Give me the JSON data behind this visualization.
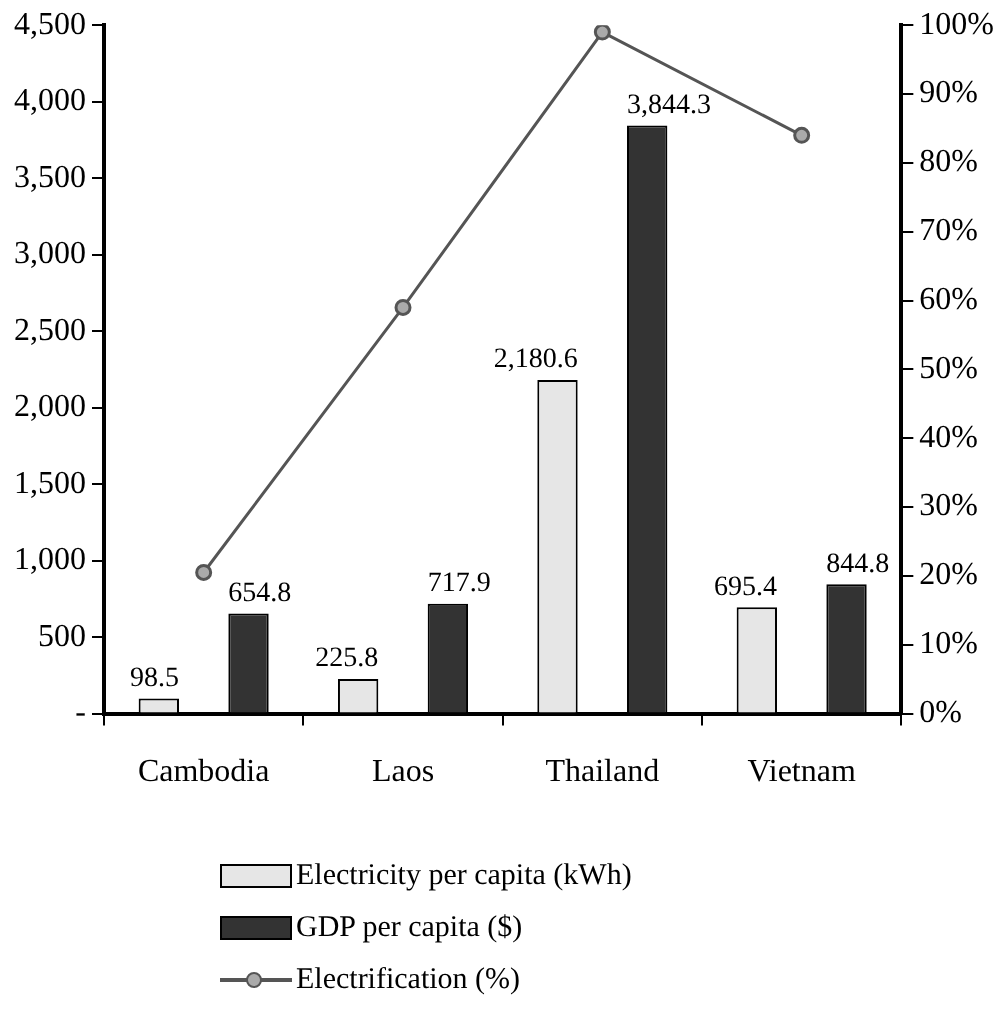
{
  "chart_data": {
    "type": "bar",
    "categories": [
      "Cambodia",
      "Laos",
      "Thailand",
      "Vietnam"
    ],
    "series": [
      {
        "name": "Electricity per capita (kWh)",
        "color": "#e6e6e6",
        "values": [
          98.5,
          225.8,
          2180.6,
          695.4
        ],
        "value_labels": [
          "98.5",
          "225.8",
          "2,180.6",
          "695.4"
        ]
      },
      {
        "name": "GDP per capita ($)",
        "color": "#333333",
        "values": [
          654.8,
          717.9,
          3844.3,
          844.8
        ],
        "value_labels": [
          "654.8",
          "717.9",
          "3,844.3",
          "844.8"
        ]
      },
      {
        "name": "Electrification (%)",
        "type": "line",
        "axis": "y2",
        "color": "#555555",
        "values": [
          20.5,
          59,
          99,
          84
        ]
      }
    ],
    "ylim": [
      0,
      4500
    ],
    "yticks": [
      {
        "value": 0,
        "label": "-"
      },
      {
        "value": 500,
        "label": "500"
      },
      {
        "value": 1000,
        "label": "1,000"
      },
      {
        "value": 1500,
        "label": "1,500"
      },
      {
        "value": 2000,
        "label": "2,000"
      },
      {
        "value": 2500,
        "label": "2,500"
      },
      {
        "value": 3000,
        "label": "3,000"
      },
      {
        "value": 3500,
        "label": "3,500"
      },
      {
        "value": 4000,
        "label": "4,000"
      },
      {
        "value": 4500,
        "label": "4,500"
      }
    ],
    "y2lim": [
      0,
      100
    ],
    "y2ticks": [
      {
        "value": 0,
        "label": "0%"
      },
      {
        "value": 10,
        "label": "10%"
      },
      {
        "value": 20,
        "label": "20%"
      },
      {
        "value": 30,
        "label": "30%"
      },
      {
        "value": 40,
        "label": "40%"
      },
      {
        "value": 50,
        "label": "50%"
      },
      {
        "value": 60,
        "label": "60%"
      },
      {
        "value": 70,
        "label": "70%"
      },
      {
        "value": 80,
        "label": "80%"
      },
      {
        "value": 90,
        "label": "90%"
      },
      {
        "value": 100,
        "label": "100%"
      }
    ],
    "grid": false,
    "legend": "bottom",
    "marker": "circle",
    "line_style": "solid"
  }
}
